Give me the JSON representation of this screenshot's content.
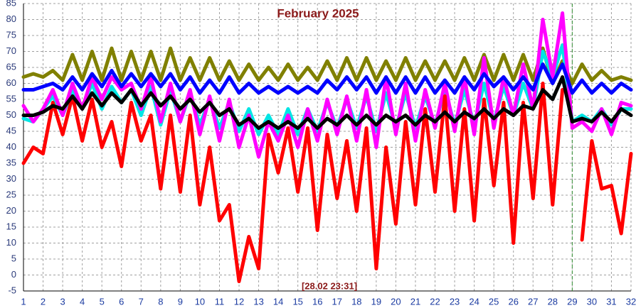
{
  "chart_data": {
    "type": "line",
    "title": "February 2025",
    "annotation": "[28.02 23:31]",
    "marker_x": 29,
    "marker_color": "#2e8b2e",
    "x": [
      1,
      1.5,
      2,
      2.5,
      3,
      3.5,
      4,
      4.5,
      5,
      5.5,
      6,
      6.5,
      7,
      7.5,
      8,
      8.5,
      9,
      9.5,
      10,
      10.5,
      11,
      11.5,
      12,
      12.5,
      13,
      13.5,
      14,
      14.5,
      15,
      15.5,
      16,
      16.5,
      17,
      17.5,
      18,
      18.5,
      19,
      19.5,
      20,
      20.5,
      21,
      21.5,
      22,
      22.5,
      23,
      23.5,
      24,
      24.5,
      25,
      25.5,
      26,
      26.5,
      27,
      27.5,
      28,
      28.5,
      29,
      29.5,
      30,
      30.5,
      31,
      31.5,
      32
    ],
    "series": [
      {
        "color": "#808000",
        "values": [
          62,
          63,
          62,
          64,
          61,
          69,
          61,
          70,
          61,
          71,
          61,
          70,
          61,
          70,
          61,
          71,
          61,
          68,
          61,
          68,
          61,
          67,
          61,
          66,
          61,
          65,
          61,
          66,
          61,
          65,
          61,
          67,
          61,
          68,
          61,
          68,
          61,
          67,
          61,
          68,
          61,
          67,
          61,
          67,
          61,
          68,
          61,
          69,
          61,
          69,
          61,
          69,
          61,
          71,
          60,
          67,
          60,
          66,
          61,
          64,
          61,
          62,
          61
        ]
      },
      {
        "color": "#00e5e5",
        "values": [
          49,
          48,
          52,
          56,
          50,
          58,
          52,
          60,
          52,
          59,
          54,
          58,
          50,
          59,
          47,
          58,
          48,
          57,
          47,
          55,
          46,
          54,
          45,
          52,
          44,
          50,
          44,
          52,
          44,
          52,
          45,
          54,
          46,
          55,
          46,
          56,
          45,
          57,
          46,
          57,
          46,
          56,
          47,
          58,
          47,
          58,
          47,
          60,
          48,
          59,
          50,
          60,
          52,
          70,
          62,
          72,
          48,
          50,
          48,
          52,
          47,
          52,
          52
        ]
      },
      {
        "color": "#ff00ff",
        "values": [
          53,
          48,
          52,
          58,
          50,
          60,
          52,
          62,
          55,
          62,
          58,
          60,
          52,
          62,
          48,
          60,
          48,
          58,
          44,
          56,
          42,
          55,
          40,
          50,
          37,
          48,
          42,
          50,
          40,
          52,
          42,
          55,
          44,
          56,
          42,
          58,
          40,
          62,
          44,
          60,
          42,
          58,
          46,
          60,
          45,
          62,
          44,
          68,
          46,
          62,
          50,
          66,
          52,
          80,
          62,
          82,
          46,
          48,
          45,
          52,
          44,
          54,
          53
        ]
      },
      {
        "color": "#ff0000",
        "values": [
          35,
          40,
          38,
          54,
          44,
          56,
          42,
          55,
          40,
          48,
          34,
          54,
          42,
          50,
          27,
          50,
          26,
          50,
          22,
          40,
          17,
          22,
          -2,
          12,
          2,
          44,
          32,
          46,
          26,
          46,
          14,
          44,
          24,
          42,
          20,
          46,
          2,
          40,
          16,
          48,
          22,
          52,
          26,
          56,
          20,
          52,
          17,
          55,
          28,
          54,
          10,
          54,
          24,
          60,
          22,
          58,
          null,
          11,
          42,
          27,
          28,
          13,
          38
        ]
      },
      {
        "color": "#0000ff",
        "values": [
          58,
          58,
          59,
          60,
          58,
          62,
          58,
          63,
          59,
          64,
          59,
          63,
          59,
          63,
          59,
          63,
          58,
          62,
          57,
          61,
          57,
          62,
          57,
          60,
          57,
          59,
          57,
          59,
          57,
          59,
          57,
          61,
          58,
          62,
          58,
          62,
          57,
          62,
          57,
          62,
          57,
          62,
          57,
          61,
          57,
          62,
          58,
          63,
          59,
          62,
          58,
          62,
          58,
          66,
          60,
          66,
          57,
          61,
          57,
          60,
          57,
          60,
          58
        ]
      },
      {
        "color": "#000000",
        "values": [
          50,
          50,
          51,
          53,
          52,
          56,
          52,
          57,
          53,
          57,
          54,
          58,
          53,
          57,
          53,
          56,
          52,
          55,
          51,
          54,
          50,
          52,
          47,
          49,
          46,
          48,
          46,
          48,
          46,
          49,
          46,
          49,
          47,
          50,
          47,
          50,
          47,
          50,
          48,
          50,
          47,
          50,
          48,
          51,
          48,
          51,
          49,
          52,
          49,
          52,
          50,
          53,
          52,
          58,
          55,
          62,
          48,
          49,
          48,
          51,
          48,
          52,
          50
        ]
      }
    ],
    "xlim": [
      1,
      32
    ],
    "xticks": [
      1,
      2,
      3,
      4,
      5,
      6,
      7,
      8,
      9,
      10,
      11,
      12,
      13,
      14,
      15,
      16,
      17,
      18,
      19,
      20,
      21,
      22,
      23,
      24,
      25,
      26,
      27,
      28,
      29,
      30,
      31,
      32
    ],
    "ylim": [
      -5,
      85
    ],
    "yticks": [
      -5,
      0,
      5,
      10,
      15,
      20,
      25,
      30,
      35,
      40,
      45,
      50,
      55,
      60,
      65,
      70,
      75,
      80,
      85
    ],
    "grid": true
  }
}
